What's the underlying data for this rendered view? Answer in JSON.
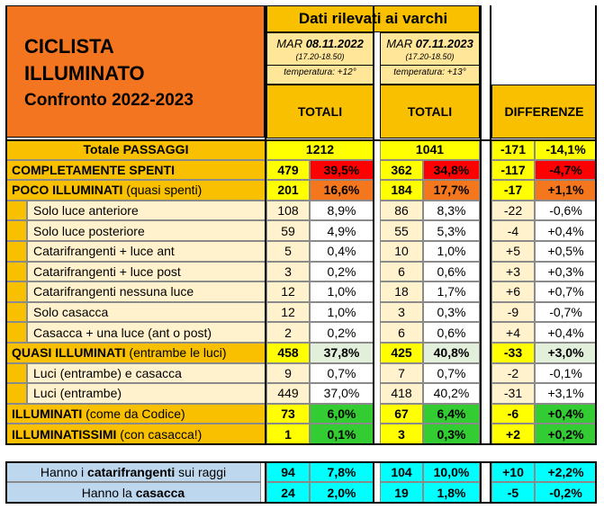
{
  "title": {
    "line1": "CICLISTA",
    "line2": "ILLUMINATO",
    "line3": "Confronto 2022-2023"
  },
  "header": {
    "main": "Dati rilevati ai varchi",
    "col2022": {
      "day": "MAR",
      "date": "08.11.2022",
      "time": "(17.20-18.50)",
      "temp": "temperatura: +12°",
      "total": "TOTALI"
    },
    "col2023": {
      "day": "MAR",
      "date": "07.11.2023",
      "time": "(17.20-18.50)",
      "temp": "temperatura: +13°",
      "total": "TOTALI"
    },
    "diff": "DIFFERENZE"
  },
  "rows": [
    {
      "label": "Totale PASSAGGI",
      "suffix": "",
      "v22": "1212",
      "p22": "",
      "v23": "1041",
      "p23": "",
      "dv": "-171",
      "dp": "-14,1%"
    },
    {
      "label": "COMPLETAMENTE SPENTI",
      "suffix": "",
      "v22": "479",
      "p22": "39,5%",
      "v23": "362",
      "p23": "34,8%",
      "dv": "-117",
      "dp": "-4,7%"
    },
    {
      "label": "POCO ILLUMINATI",
      "suffix": " (quasi spenti)",
      "v22": "201",
      "p22": "16,6%",
      "v23": "184",
      "p23": "17,7%",
      "dv": "-17",
      "dp": "+1,1%"
    },
    {
      "label": "Solo luce anteriore",
      "suffix": "",
      "v22": "108",
      "p22": "8,9%",
      "v23": "86",
      "p23": "8,3%",
      "dv": "-22",
      "dp": "-0,6%"
    },
    {
      "label": "Solo luce posteriore",
      "suffix": "",
      "v22": "59",
      "p22": "4,9%",
      "v23": "55",
      "p23": "5,3%",
      "dv": "-4",
      "dp": "+0,4%"
    },
    {
      "label": "Catarifrangenti + luce ant",
      "suffix": "",
      "v22": "5",
      "p22": "0,4%",
      "v23": "10",
      "p23": "1,0%",
      "dv": "+5",
      "dp": "+0,5%"
    },
    {
      "label": "Catarifrangenti + luce post",
      "suffix": "",
      "v22": "3",
      "p22": "0,2%",
      "v23": "6",
      "p23": "0,6%",
      "dv": "+3",
      "dp": "+0,3%"
    },
    {
      "label": "Catarifrangenti nessuna luce",
      "suffix": "",
      "v22": "12",
      "p22": "1,0%",
      "v23": "18",
      "p23": "1,7%",
      "dv": "+6",
      "dp": "+0,7%"
    },
    {
      "label": "Solo casacca",
      "suffix": "",
      "v22": "12",
      "p22": "1,0%",
      "v23": "3",
      "p23": "0,3%",
      "dv": "-9",
      "dp": "-0,7%"
    },
    {
      "label": "Casacca + una luce (ant o post)",
      "suffix": "",
      "v22": "2",
      "p22": "0,2%",
      "v23": "6",
      "p23": "0,6%",
      "dv": "+4",
      "dp": "+0,4%"
    },
    {
      "label": "QUASI ILLUMINATI",
      "suffix": " (entrambe le luci)",
      "v22": "458",
      "p22": "37,8%",
      "v23": "425",
      "p23": "40,8%",
      "dv": "-33",
      "dp": "+3,0%"
    },
    {
      "label": "Luci (entrambe) e casacca",
      "suffix": "",
      "v22": "9",
      "p22": "0,7%",
      "v23": "7",
      "p23": "0,7%",
      "dv": "-2",
      "dp": "-0,1%"
    },
    {
      "label": "Luci (entrambe)",
      "suffix": "",
      "v22": "449",
      "p22": "37,0%",
      "v23": "418",
      "p23": "40,2%",
      "dv": "-31",
      "dp": "+3,1%"
    },
    {
      "label": "ILLUMINATI",
      "suffix": " (come da Codice)",
      "v22": "73",
      "p22": "6,0%",
      "v23": "67",
      "p23": "6,4%",
      "dv": "-6",
      "dp": "+0,4%"
    },
    {
      "label": "ILLUMINATISSIMI",
      "suffix": " (con casacca!)",
      "v22": "1",
      "p22": "0,1%",
      "v23": "3",
      "p23": "0,3%",
      "dv": "+2",
      "dp": "+0,2%"
    }
  ],
  "bottom": [
    {
      "pre": "Hanno i ",
      "bold": "catarifrangenti",
      "post": " sui raggi",
      "v22": "94",
      "p22": "7,8%",
      "v23": "104",
      "p23": "10,0%",
      "dv": "+10",
      "dp": "+2,2%"
    },
    {
      "pre": "Hanno la ",
      "bold": "casacca",
      "post": "",
      "v22": "24",
      "p22": "2,0%",
      "v23": "19",
      "p23": "1,8%",
      "dv": "-5",
      "dp": "-0,2%"
    }
  ],
  "colors": {
    "orange": "#F47520",
    "gold": "#F9C000",
    "lightYellow": "#FFE699",
    "brightYellow": "#FFFF00",
    "red": "#FF0000",
    "darkOrange": "#F4771E",
    "green": "#33CC33",
    "lightGreen": "#E2EFDA",
    "cyan": "#00FFFF",
    "lightBlue": "#BDD7EE",
    "paleYellow": "#FFF2CC"
  }
}
